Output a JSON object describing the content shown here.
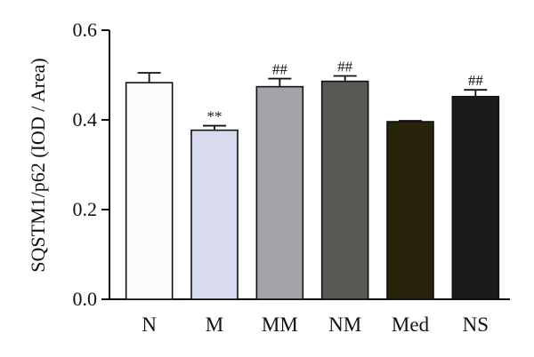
{
  "chart_data": {
    "type": "bar",
    "title": "",
    "xlabel": "",
    "ylabel": "SQSTM1/p62 (IOD / Area)",
    "ylim": [
      0,
      0.6
    ],
    "yticks": [
      "0.0",
      "0.2",
      "0.4",
      "0.6"
    ],
    "ytick_values": [
      0,
      0.2,
      0.4,
      0.6
    ],
    "categories": [
      "N",
      "M",
      "MM",
      "NM",
      "Med",
      "NS"
    ],
    "values": [
      0.483,
      0.377,
      0.474,
      0.486,
      0.396,
      0.452
    ],
    "errors": [
      0.022,
      0.01,
      0.018,
      0.012,
      0.002,
      0.015
    ],
    "colors": [
      "#fbfbfb",
      "#d8dbf0",
      "#a4a4a8",
      "#575a52",
      "#28240c",
      "#1b1b1b"
    ],
    "annotations": [
      "",
      "**",
      "##",
      "##",
      "",
      "##"
    ],
    "grid": false,
    "legend": "none"
  }
}
